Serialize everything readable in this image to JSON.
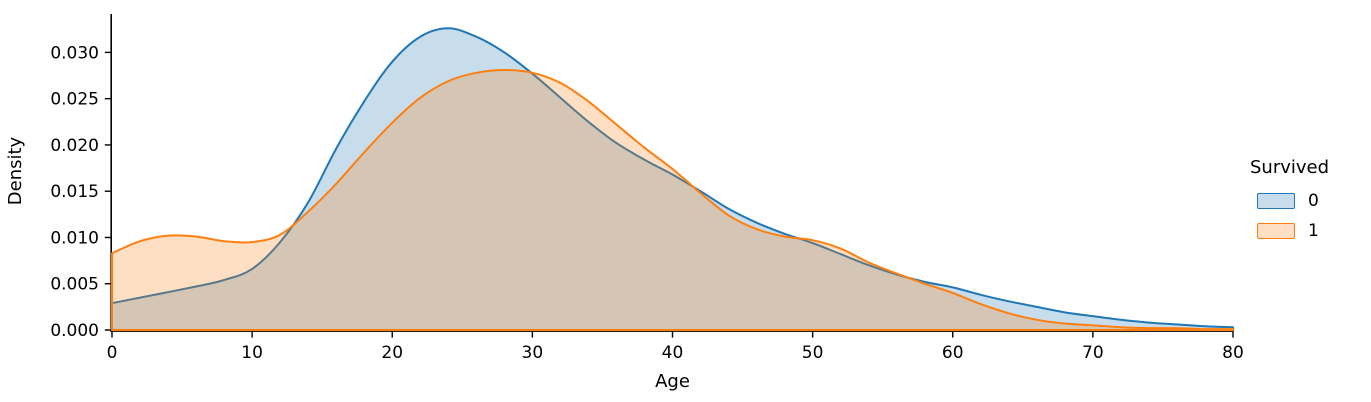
{
  "figure": {
    "background": "#ffffff",
    "axis_color": "#000000",
    "text_color": "#000000"
  },
  "chart_data": {
    "type": "area",
    "subtype": "kde-density",
    "title": "",
    "xlabel": "Age",
    "ylabel": "Density",
    "xlim": [
      0,
      80
    ],
    "ylim": [
      0,
      0.0343
    ],
    "grid": false,
    "xticks": {
      "values": [
        0,
        10,
        20,
        30,
        40,
        50,
        60,
        70,
        80
      ],
      "labels": [
        "0",
        "10",
        "20",
        "30",
        "40",
        "50",
        "60",
        "70",
        "80"
      ]
    },
    "yticks": {
      "values": [
        0.0,
        0.005,
        0.01,
        0.015,
        0.02,
        0.025,
        0.03
      ],
      "labels": [
        "0.000",
        "0.005",
        "0.010",
        "0.015",
        "0.020",
        "0.025",
        "0.030"
      ]
    },
    "legend": {
      "title": "Survived",
      "position": "center right"
    },
    "series": [
      {
        "name": "0",
        "color": "#1f77b4",
        "fill_opacity": 0.25,
        "line_width": 2,
        "x": [
          0,
          2,
          4,
          6,
          8,
          10,
          12,
          14,
          16,
          18,
          20,
          22,
          24,
          26,
          28,
          30,
          32,
          34,
          36,
          38,
          40,
          42,
          44,
          46,
          48,
          50,
          52,
          54,
          56,
          58,
          60,
          62,
          64,
          66,
          68,
          70,
          72,
          74,
          76,
          78,
          80
        ],
        "y": [
          0.0029,
          0.0035,
          0.0041,
          0.0047,
          0.0054,
          0.0066,
          0.0095,
          0.0138,
          0.0196,
          0.0247,
          0.029,
          0.0317,
          0.0326,
          0.0317,
          0.03,
          0.0277,
          0.0251,
          0.0225,
          0.0202,
          0.0184,
          0.0168,
          0.015,
          0.0131,
          0.0116,
          0.0104,
          0.0094,
          0.0082,
          0.007,
          0.006,
          0.0052,
          0.0046,
          0.0038,
          0.0031,
          0.0025,
          0.0019,
          0.0015,
          0.0011,
          0.0008,
          0.0006,
          0.0004,
          0.0003
        ]
      },
      {
        "name": "1",
        "color": "#ff7f0e",
        "fill_opacity": 0.25,
        "line_width": 2,
        "x": [
          0,
          2,
          4,
          6,
          8,
          10,
          12,
          14,
          16,
          18,
          20,
          22,
          24,
          26,
          28,
          30,
          32,
          34,
          36,
          38,
          40,
          42,
          44,
          46,
          48,
          50,
          52,
          54,
          56,
          58,
          60,
          62,
          64,
          66,
          68,
          70,
          72,
          74,
          76,
          78,
          80
        ],
        "y": [
          0.0083,
          0.0096,
          0.0102,
          0.0101,
          0.0096,
          0.0095,
          0.0103,
          0.0128,
          0.0158,
          0.0192,
          0.0224,
          0.0251,
          0.0269,
          0.0278,
          0.0281,
          0.0278,
          0.0267,
          0.0247,
          0.0222,
          0.0197,
          0.0174,
          0.0148,
          0.0124,
          0.0109,
          0.0101,
          0.0097,
          0.0088,
          0.0073,
          0.0061,
          0.005,
          0.004,
          0.0028,
          0.0018,
          0.0011,
          0.0007,
          0.0005,
          0.0003,
          0.0002,
          0.0002,
          0.0001,
          0.0001
        ]
      }
    ]
  }
}
